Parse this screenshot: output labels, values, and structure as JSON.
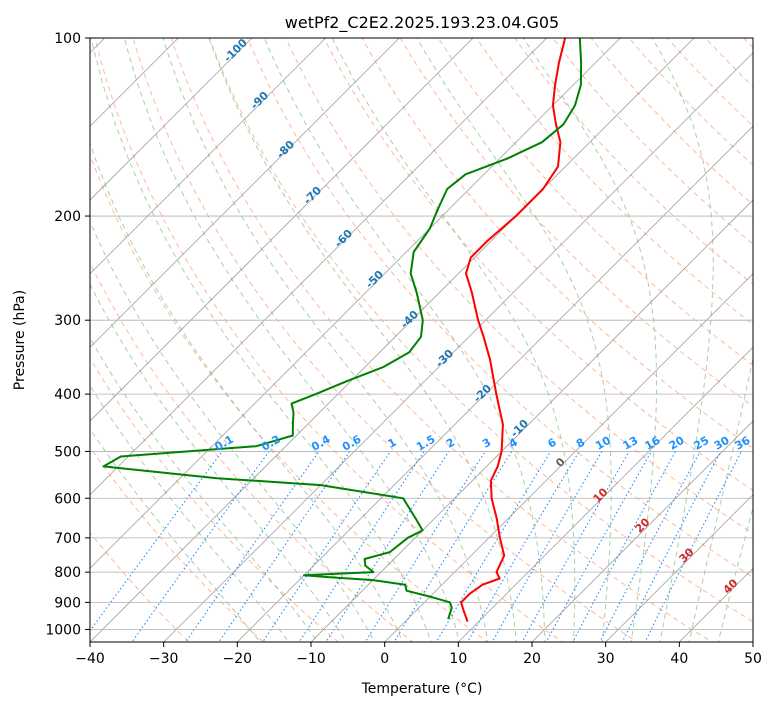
{
  "chart_data": {
    "type": "line",
    "subtype": "skew-T log-P diagram",
    "title": "wetPf2_C2E2.2025.193.23.04.G05",
    "xlabel": "Temperature (°C)",
    "ylabel": "Pressure (hPa)",
    "xlim": [
      -40,
      50
    ],
    "ylim": [
      1050,
      100
    ],
    "yscale": "log",
    "x_ticks": [
      -40,
      -30,
      -20,
      -10,
      0,
      10,
      20,
      30,
      40,
      50
    ],
    "x_tick_labels": [
      "−40",
      "−30",
      "−20",
      "−10",
      "0",
      "10",
      "20",
      "30",
      "40",
      "50"
    ],
    "y_ticks": [
      100,
      200,
      300,
      400,
      500,
      600,
      700,
      800,
      900,
      1000
    ],
    "y_tick_labels": [
      "100",
      "200",
      "300",
      "400",
      "500",
      "600",
      "700",
      "800",
      "900",
      "1000"
    ],
    "grid": true,
    "colors": {
      "temperature": "#ff0000",
      "dewpoint": "#008000",
      "isotherms": "#808080",
      "dry_adiabats": "#ffa07a",
      "moist_adiabats": "#8fbc8f",
      "mixing_ratio": "#1e90ff",
      "mixing_ratio_labels": "#1e90ff",
      "moist_adiabat_labels": "#d62728",
      "upper_labels": "#1f77b4"
    },
    "series": [
      {
        "key": "temperature",
        "points": [
          {
            "p": 970,
            "t": 8.5
          },
          {
            "p": 930,
            "t": 6.5
          },
          {
            "p": 900,
            "t": 5.0
          },
          {
            "p": 870,
            "t": 5.0
          },
          {
            "p": 840,
            "t": 5.5
          },
          {
            "p": 820,
            "t": 7.0
          },
          {
            "p": 800,
            "t": 5.7
          },
          {
            "p": 750,
            "t": 4.5
          },
          {
            "p": 700,
            "t": 1.5
          },
          {
            "p": 650,
            "t": -1.5
          },
          {
            "p": 600,
            "t": -5.0
          },
          {
            "p": 560,
            "t": -7.5
          },
          {
            "p": 530,
            "t": -8.5
          },
          {
            "p": 500,
            "t": -10.0
          },
          {
            "p": 450,
            "t": -13.5
          },
          {
            "p": 400,
            "t": -18.5
          },
          {
            "p": 350,
            "t": -24.0
          },
          {
            "p": 320,
            "t": -28.0
          },
          {
            "p": 300,
            "t": -31.0
          },
          {
            "p": 270,
            "t": -35.5
          },
          {
            "p": 250,
            "t": -39.0
          },
          {
            "p": 235,
            "t": -40.5
          },
          {
            "p": 220,
            "t": -40.5
          },
          {
            "p": 200,
            "t": -40.0
          },
          {
            "p": 180,
            "t": -40.0
          },
          {
            "p": 165,
            "t": -41.0
          },
          {
            "p": 150,
            "t": -44.0
          },
          {
            "p": 140,
            "t": -47.0
          },
          {
            "p": 130,
            "t": -50.0
          },
          {
            "p": 120,
            "t": -52.5
          },
          {
            "p": 110,
            "t": -55.0
          },
          {
            "p": 100,
            "t": -57.5
          }
        ]
      },
      {
        "key": "dewpoint",
        "points": [
          {
            "p": 960,
            "t": 5.5
          },
          {
            "p": 940,
            "t": 5.0
          },
          {
            "p": 920,
            "t": 4.5
          },
          {
            "p": 900,
            "t": 3.5
          },
          {
            "p": 880,
            "t": 0.0
          },
          {
            "p": 860,
            "t": -4.0
          },
          {
            "p": 840,
            "t": -5.0
          },
          {
            "p": 825,
            "t": -10.0
          },
          {
            "p": 815,
            "t": -17.0
          },
          {
            "p": 810,
            "t": -20.0
          },
          {
            "p": 800,
            "t": -11.0
          },
          {
            "p": 780,
            "t": -13.0
          },
          {
            "p": 760,
            "t": -14.0
          },
          {
            "p": 740,
            "t": -11.5
          },
          {
            "p": 700,
            "t": -11.0
          },
          {
            "p": 680,
            "t": -10.0
          },
          {
            "p": 650,
            "t": -12.5
          },
          {
            "p": 600,
            "t": -17.0
          },
          {
            "p": 570,
            "t": -30.0
          },
          {
            "p": 555,
            "t": -45.0
          },
          {
            "p": 530,
            "t": -62.0
          },
          {
            "p": 510,
            "t": -61.0
          },
          {
            "p": 490,
            "t": -44.0
          },
          {
            "p": 470,
            "t": -40.5
          },
          {
            "p": 450,
            "t": -42.0
          },
          {
            "p": 430,
            "t": -43.5
          },
          {
            "p": 415,
            "t": -45.0
          },
          {
            "p": 400,
            "t": -43.0
          },
          {
            "p": 380,
            "t": -40.5
          },
          {
            "p": 360,
            "t": -37.5
          },
          {
            "p": 340,
            "t": -36.0
          },
          {
            "p": 320,
            "t": -36.5
          },
          {
            "p": 300,
            "t": -38.5
          },
          {
            "p": 270,
            "t": -43.0
          },
          {
            "p": 250,
            "t": -46.5
          },
          {
            "p": 230,
            "t": -49.0
          },
          {
            "p": 210,
            "t": -50.0
          },
          {
            "p": 195,
            "t": -51.5
          },
          {
            "p": 180,
            "t": -53.0
          },
          {
            "p": 170,
            "t": -52.5
          },
          {
            "p": 160,
            "t": -49.0
          },
          {
            "p": 150,
            "t": -46.5
          },
          {
            "p": 140,
            "t": -46.0
          },
          {
            "p": 130,
            "t": -47.0
          },
          {
            "p": 120,
            "t": -49.0
          },
          {
            "p": 110,
            "t": -52.0
          },
          {
            "p": 100,
            "t": -55.5
          }
        ]
      }
    ],
    "mixing_ratio_labels": [
      "0.1",
      "0.2",
      "0.4",
      "0.6",
      "1",
      "1.5",
      "2",
      "3",
      "4",
      "6",
      "8",
      "10",
      "13",
      "16",
      "20",
      "25",
      "30",
      "36"
    ],
    "moist_adiabat_labels": [
      "0",
      "10",
      "20",
      "30",
      "40"
    ],
    "upper_labels": [
      "-100",
      "-90",
      "-80",
      "-70",
      "-60",
      "-50",
      "-40",
      "-30",
      "-20",
      "-10"
    ]
  }
}
